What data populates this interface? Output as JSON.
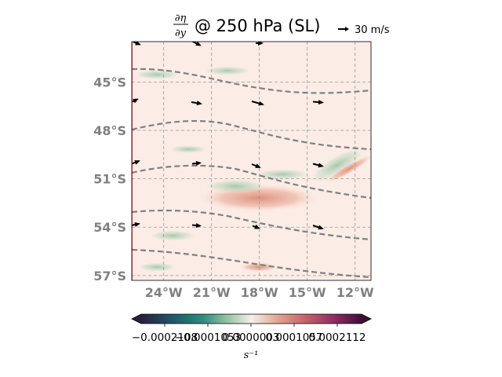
{
  "title": {
    "numerator": "∂η",
    "denominator": "∂y",
    "text": "@ 250 hPa (SL)"
  },
  "quiver_key": {
    "label": "30 m/s",
    "speed_ms": 30
  },
  "map": {
    "lon_range": [
      -26,
      -11
    ],
    "lat_range": [
      -57.3,
      -42.5
    ],
    "lon_ticks": [
      "24°W",
      "21°W",
      "18°W",
      "15°W",
      "12°W"
    ],
    "lat_ticks": [
      "45°S",
      "48°S",
      "51°S",
      "54°S",
      "57°S"
    ],
    "lon_values": [
      -24,
      -21,
      -18,
      -15,
      -12
    ],
    "lat_values": [
      -45,
      -48,
      -51,
      -54,
      -57
    ],
    "gridlines": true,
    "field_colors": {
      "background": "#fbece6",
      "positive": "#d9806a",
      "negative": "#9cc2a4",
      "coast": "#cc0000",
      "contour": "#808080"
    }
  },
  "colorbar": {
    "tick_labels": [
      "−0.0002108",
      "−0.0001053",
      "0.0000003",
      "0.0001057",
      "0.0002112"
    ],
    "unit": "s⁻¹",
    "colors": [
      "#2a1e3d",
      "#1f5a6b",
      "#2e8c7e",
      "#9ec7a9",
      "#f4f0ea",
      "#e2a58e",
      "#c4606a",
      "#8f2a63",
      "#3d0f3a"
    ]
  }
}
